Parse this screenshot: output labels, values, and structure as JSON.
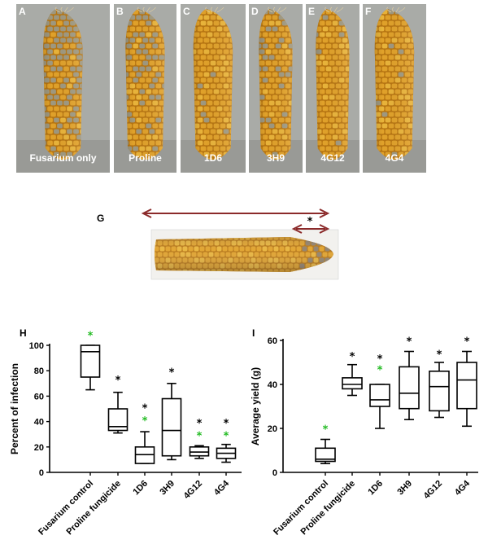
{
  "photo_panels": [
    {
      "letter": "A",
      "label": "Fusarium only",
      "disease": 0.85
    },
    {
      "letter": "B",
      "label": "Proline",
      "disease": 0.55
    },
    {
      "letter": "C",
      "label": "1D6",
      "disease": 0.05
    },
    {
      "letter": "D",
      "label": "3H9",
      "disease": 0.35
    },
    {
      "letter": "E",
      "label": "4G12",
      "disease": 0.1
    },
    {
      "letter": "F",
      "label": "4G4",
      "disease": 0.08
    }
  ],
  "panel_g": {
    "letter": "G",
    "annotation": "*"
  },
  "colors": {
    "kernel": "#e0a12a",
    "kernel_dark": "#b77512",
    "diseased": "#9e9880",
    "photo_bg": "#a9aba7",
    "arrow": "#8b2a2a",
    "green_star": "#22bb22",
    "black_star": "#000000"
  },
  "chart_data": [
    {
      "type": "boxplot",
      "panel": "H",
      "ylabel": "Percent of infection",
      "ylim": [
        0,
        100
      ],
      "yticks": [
        0,
        20,
        40,
        60,
        80,
        100
      ],
      "categories": [
        "Fusarium control",
        "Proline fungicide",
        "1D6",
        "3H9",
        "4G12",
        "4G4"
      ],
      "boxes": [
        {
          "min": 65,
          "q1": 75,
          "median": 95,
          "q3": 100,
          "max": 100
        },
        {
          "min": 31,
          "q1": 33,
          "median": 36,
          "q3": 50,
          "max": 63
        },
        {
          "min": 7,
          "q1": 7,
          "median": 14,
          "q3": 20,
          "max": 32
        },
        {
          "min": 10,
          "q1": 13,
          "median": 33,
          "q3": 58,
          "max": 70
        },
        {
          "min": 11,
          "q1": 13,
          "median": 16,
          "q3": 20,
          "max": 21
        },
        {
          "min": 8,
          "q1": 11,
          "median": 15,
          "q3": 19,
          "max": 22
        }
      ],
      "significance": [
        {
          "category": 0,
          "marks": [
            {
              "symbol": "*",
              "color": "green",
              "y": 110
            }
          ]
        },
        {
          "category": 1,
          "marks": [
            {
              "symbol": "*",
              "color": "black",
              "y": 75
            }
          ]
        },
        {
          "category": 2,
          "marks": [
            {
              "symbol": "*",
              "color": "black",
              "y": 53
            },
            {
              "symbol": "*",
              "color": "green",
              "y": 43
            }
          ]
        },
        {
          "category": 3,
          "marks": [
            {
              "symbol": "*",
              "color": "black",
              "y": 81
            }
          ]
        },
        {
          "category": 4,
          "marks": [
            {
              "symbol": "*",
              "color": "black",
              "y": 41
            },
            {
              "symbol": "*",
              "color": "green",
              "y": 31
            }
          ]
        },
        {
          "category": 5,
          "marks": [
            {
              "symbol": "*",
              "color": "black",
              "y": 41
            },
            {
              "symbol": "*",
              "color": "green",
              "y": 31
            }
          ]
        }
      ]
    },
    {
      "type": "boxplot",
      "panel": "I",
      "ylabel": "Average yield (g)",
      "ylim": [
        0,
        60
      ],
      "yticks": [
        0,
        20,
        40,
        60
      ],
      "categories": [
        "Fusarium control",
        "Proline fungicide",
        "1D6",
        "3H9",
        "4G12",
        "4G4"
      ],
      "boxes": [
        {
          "min": 4,
          "q1": 5,
          "median": 6,
          "q3": 11,
          "max": 15
        },
        {
          "min": 35,
          "q1": 38,
          "median": 40,
          "q3": 43,
          "max": 49
        },
        {
          "min": 20,
          "q1": 30,
          "median": 33,
          "q3": 40,
          "max": 40
        },
        {
          "min": 24,
          "q1": 29,
          "median": 36,
          "q3": 48,
          "max": 55
        },
        {
          "min": 25,
          "q1": 28,
          "median": 39,
          "q3": 46,
          "max": 50
        },
        {
          "min": 21,
          "q1": 29,
          "median": 42,
          "q3": 50,
          "max": 55
        }
      ],
      "significance": [
        {
          "category": 0,
          "marks": [
            {
              "symbol": "*",
              "color": "green",
              "y": 21
            }
          ]
        },
        {
          "category": 1,
          "marks": [
            {
              "symbol": "*",
              "color": "black",
              "y": 54
            }
          ]
        },
        {
          "category": 2,
          "marks": [
            {
              "symbol": "*",
              "color": "black",
              "y": 53
            },
            {
              "symbol": "*",
              "color": "green",
              "y": 48
            }
          ]
        },
        {
          "category": 3,
          "marks": [
            {
              "symbol": "*",
              "color": "black",
              "y": 61
            }
          ]
        },
        {
          "category": 4,
          "marks": [
            {
              "symbol": "*",
              "color": "black",
              "y": 55
            }
          ]
        },
        {
          "category": 5,
          "marks": [
            {
              "symbol": "*",
              "color": "black",
              "y": 61
            }
          ]
        }
      ]
    }
  ]
}
